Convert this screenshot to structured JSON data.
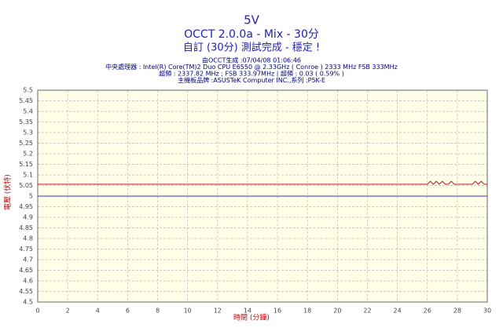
{
  "chart_data": {
    "type": "line",
    "title": "5V",
    "subtitle": "OCCT 2.0.0a - Mix - 30分",
    "status": "自訂 (30分) 測試完成 - 穩定 !",
    "annotations": [
      "由OCCT生成 :07/04/08 01:06:46",
      "中央處理器 : Intel(R) Core(TM)2 Duo CPU E6550 @ 2.33GHz ( Conroe ) 2333 MHz FSB 333MHz",
      "超頻 : 2337.82 MHz ; FSB 333.97MHz | 超頻 : 0.03 ( 0.59% )",
      "主機板品牌 :ASUSTeK Computer INC.,系列 :P5K-E"
    ],
    "x_label": "時間 (分鐘)",
    "y_label": "電壓 (伏特)",
    "series": [
      {
        "color": "#b22222",
        "x": [
          0,
          26,
          26.2,
          26.4,
          26.6,
          26.8,
          27.0,
          27.2,
          27.4,
          27.6,
          27.8,
          28.0,
          29.0,
          29.2,
          29.4,
          29.6,
          29.8,
          30
        ],
        "values": [
          5.056,
          5.056,
          5.07,
          5.056,
          5.07,
          5.056,
          5.07,
          5.056,
          5.056,
          5.07,
          5.056,
          5.056,
          5.056,
          5.07,
          5.056,
          5.07,
          5.056,
          5.056
        ]
      },
      {
        "color": "#3333cc",
        "x": [
          0,
          30
        ],
        "values": [
          5,
          5
        ]
      }
    ],
    "xlim": [
      0,
      30
    ],
    "xticks": [
      0,
      2,
      4,
      6,
      8,
      10,
      12,
      14,
      16,
      18,
      20,
      22,
      24,
      26,
      28,
      30
    ],
    "ylim": [
      4.5,
      5.5
    ],
    "yticks": [
      4.5,
      4.55,
      4.6,
      4.65,
      4.7,
      4.75,
      4.8,
      4.85,
      4.9,
      4.95,
      5,
      5.05,
      5.1,
      5.15,
      5.2,
      5.25,
      5.3,
      5.35,
      5.4,
      5.45,
      5.5
    ],
    "grid": true,
    "background": "#ffffe8"
  }
}
